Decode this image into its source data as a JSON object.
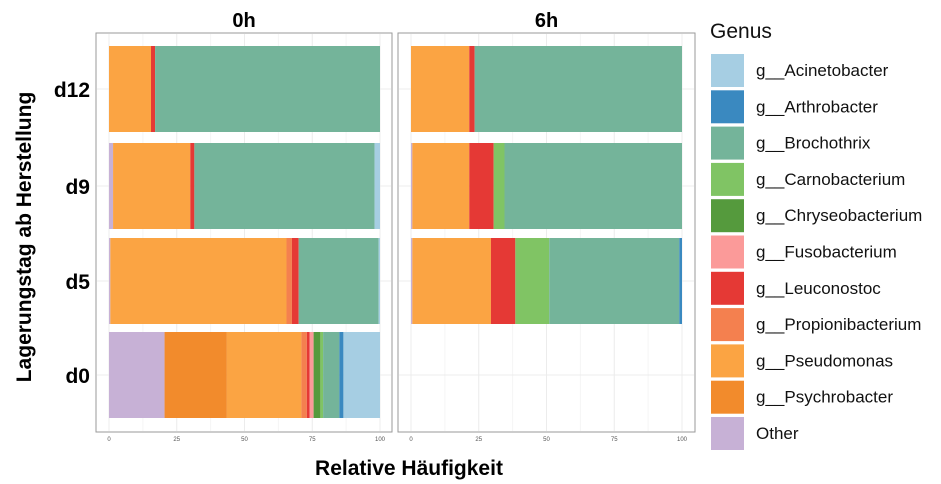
{
  "chart_data": {
    "type": "bar",
    "orientation": "horizontal",
    "stacked": true,
    "xlabel": "Relative Häufigkeit",
    "ylabel": "Lagerungstag ab Herstellung",
    "xlim": [
      0,
      100
    ],
    "xticks": [
      "0",
      "25",
      "50",
      "75",
      "100"
    ],
    "categories": [
      "d12",
      "d9",
      "d5",
      "d0"
    ],
    "grid": true,
    "legend_position": "right",
    "legend_title": "Genus",
    "genera": [
      {
        "name": "g__Acinetobacter",
        "color": "#a6cee3"
      },
      {
        "name": "g__Arthrobacter",
        "color": "#3a89c0"
      },
      {
        "name": "g__Brochothrix",
        "color": "#74b49a"
      },
      {
        "name": "g__Carnobacterium",
        "color": "#80c464"
      },
      {
        "name": "g__Chryseobacterium",
        "color": "#559a3d"
      },
      {
        "name": "g__Fusobacterium",
        "color": "#fb9a99"
      },
      {
        "name": "g__Leuconostoc",
        "color": "#e53935"
      },
      {
        "name": "g__Propionibacterium",
        "color": "#f4804f"
      },
      {
        "name": "g__Pseudomonas",
        "color": "#fba443"
      },
      {
        "name": "g__Psychrobacter",
        "color": "#f28b2c"
      },
      {
        "name": "Other",
        "color": "#c7b1d6"
      }
    ],
    "stack_order": [
      "Other",
      "g__Psychrobacter",
      "g__Pseudomonas",
      "g__Propionibacterium",
      "g__Leuconostoc",
      "g__Fusobacterium",
      "g__Chryseobacterium",
      "g__Carnobacterium",
      "g__Brochothrix",
      "g__Arthrobacter",
      "g__Acinetobacter"
    ],
    "facets": [
      {
        "title": "0h",
        "bars": {
          "d12": {
            "g__Pseudomonas": 15.5,
            "g__Leuconostoc": 1.5,
            "g__Brochothrix": 83
          },
          "d9": {
            "Other": 1.5,
            "g__Pseudomonas": 28.5,
            "g__Leuconostoc": 1.5,
            "g__Brochothrix": 66.5,
            "g__Acinetobacter": 2
          },
          "d5": {
            "Other": 0.5,
            "g__Propionibacterium": 2,
            "g__Pseudomonas": 65,
            "g__Leuconostoc": 2.5,
            "g__Brochothrix": 29.5,
            "g__Acinetobacter": 0.5
          },
          "d0": {
            "Other": 20.5,
            "g__Psychrobacter": 23,
            "g__Pseudomonas": 27.5,
            "g__Propionibacterium": 2,
            "g__Fusobacterium": 1.5,
            "g__Leuconostoc": 1,
            "g__Chryseobacterium": 2.5,
            "g__Carnobacterium": 1,
            "g__Brochothrix": 6,
            "g__Arthrobacter": 1.5,
            "g__Acinetobacter": 13.5
          }
        }
      },
      {
        "title": "6h",
        "bars": {
          "d12": {
            "g__Pseudomonas": 21.5,
            "g__Leuconostoc": 2,
            "g__Brochothrix": 76.5
          },
          "d9": {
            "Other": 0.5,
            "g__Pseudomonas": 21,
            "g__Leuconostoc": 9,
            "g__Carnobacterium": 4,
            "g__Brochothrix": 65.5
          },
          "d5": {
            "Other": 0.5,
            "g__Pseudomonas": 29,
            "g__Leuconostoc": 9,
            "g__Carnobacterium": 12.5,
            "g__Brochothrix": 48,
            "g__Arthrobacter": 1
          }
        }
      }
    ]
  }
}
